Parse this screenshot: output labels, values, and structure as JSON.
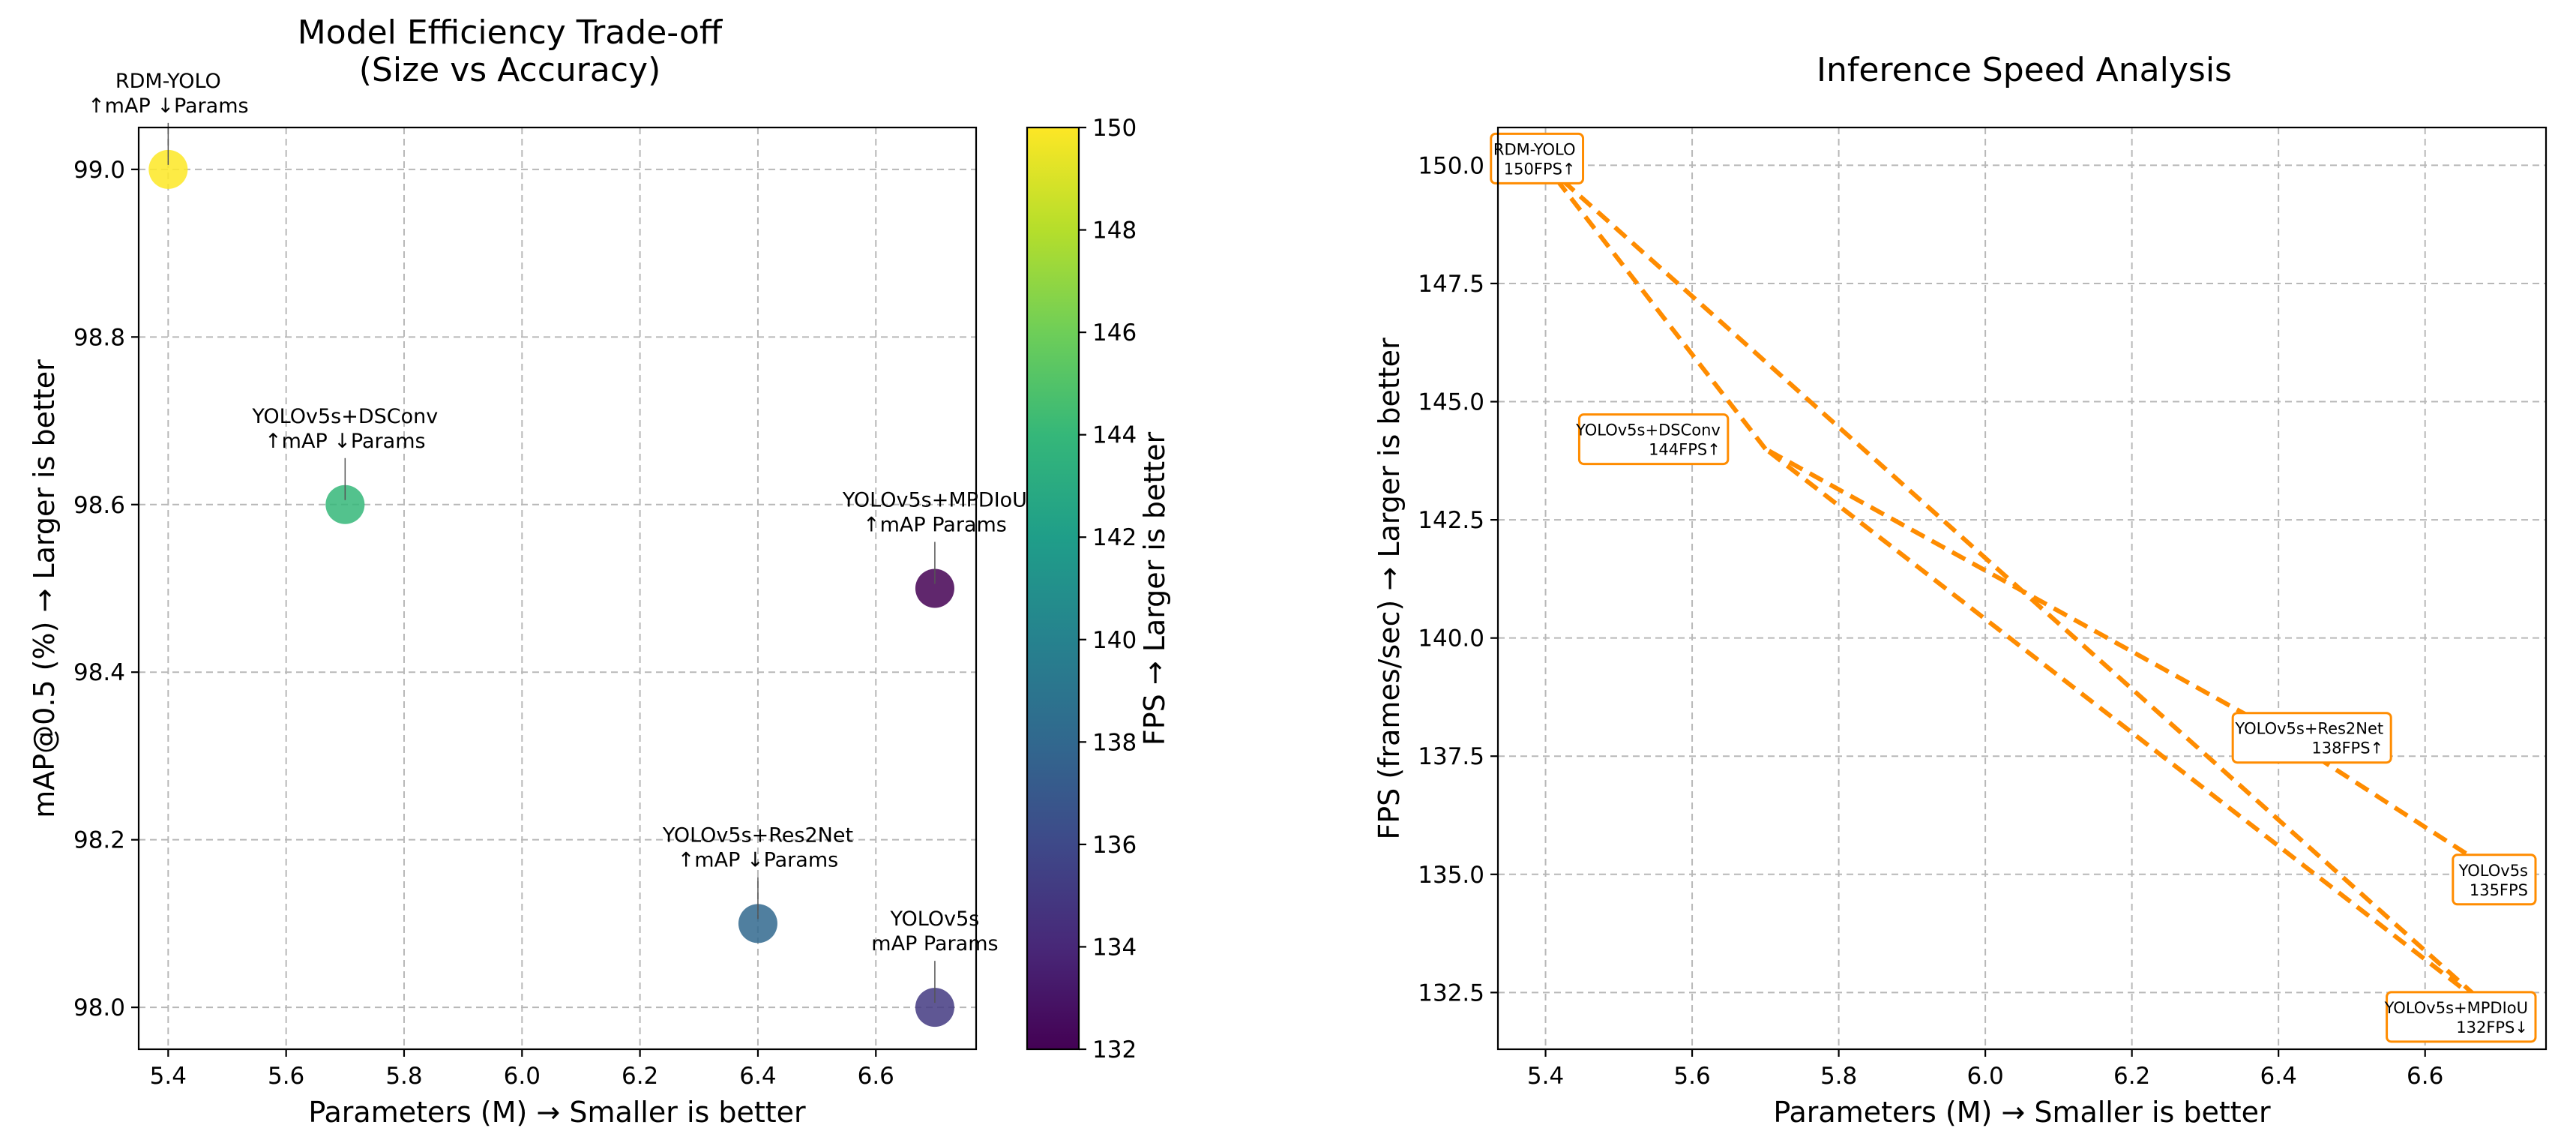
{
  "colors": {
    "line": "#ff8c00",
    "box_border": "#ff8c00",
    "grid": "#b8b8b8",
    "viridis": [
      "#440154",
      "#482878",
      "#3e4989",
      "#31688e",
      "#26828e",
      "#1f9e89",
      "#35b779",
      "#6ece58",
      "#b5de2b",
      "#fde725"
    ]
  },
  "chart_data": [
    {
      "type": "scatter",
      "title": [
        "Model Efficiency Trade-off",
        "(Size vs Accuracy)"
      ],
      "xlabel": "Parameters (M) → Smaller is better",
      "ylabel": "mAP@0.5 (%) → Larger is better",
      "xlim": [
        5.35,
        6.77
      ],
      "ylim": [
        97.95,
        99.05
      ],
      "xticks": [
        "5.4",
        "5.6",
        "5.8",
        "6.0",
        "6.2",
        "6.4",
        "6.6"
      ],
      "xtick_values": [
        5.4,
        5.6,
        5.8,
        6.0,
        6.2,
        6.4,
        6.6
      ],
      "yticks": [
        "98.0",
        "98.2",
        "98.4",
        "98.6",
        "98.8",
        "99.0"
      ],
      "ytick_values": [
        98.0,
        98.2,
        98.4,
        98.6,
        98.8,
        99.0
      ],
      "grid": true,
      "color_by": "fps",
      "colorbar": {
        "label": "FPS → Larger is better",
        "range": [
          132,
          150
        ],
        "ticks": [
          "132",
          "134",
          "136",
          "138",
          "140",
          "142",
          "144",
          "146",
          "148",
          "150"
        ],
        "tick_values": [
          132,
          134,
          136,
          138,
          140,
          142,
          144,
          146,
          148,
          150
        ]
      },
      "points": [
        {
          "x": 5.4,
          "y": 99.0,
          "fps": 150,
          "annotation": [
            "RDM-YOLO",
            "↑mAP ↓Params"
          ]
        },
        {
          "x": 5.7,
          "y": 98.6,
          "fps": 144,
          "annotation": [
            "YOLOv5s+DSConv",
            "↑mAP ↓Params"
          ]
        },
        {
          "x": 6.7,
          "y": 98.5,
          "fps": 132,
          "annotation": [
            "YOLOv5s+MPDIoU",
            "↑mAP Params"
          ]
        },
        {
          "x": 6.4,
          "y": 98.1,
          "fps": 138,
          "annotation": [
            "YOLOv5s+Res2Net",
            "↑mAP ↓Params"
          ]
        },
        {
          "x": 6.7,
          "y": 98.0,
          "fps": 135,
          "annotation": [
            "YOLOv5s",
            "mAP Params"
          ]
        }
      ]
    },
    {
      "type": "line",
      "title": "Inference Speed Analysis",
      "xlabel": "Parameters (M) → Smaller is better",
      "ylabel": "FPS (frames/sec) → Larger is better",
      "xlim": [
        5.335,
        6.765
      ],
      "ylim": [
        131.3,
        150.8
      ],
      "xticks": [
        "5.4",
        "5.6",
        "5.8",
        "6.0",
        "6.2",
        "6.4",
        "6.6"
      ],
      "xtick_values": [
        5.4,
        5.6,
        5.8,
        6.0,
        6.2,
        6.4,
        6.6
      ],
      "yticks": [
        "132.5",
        "135.0",
        "137.5",
        "140.0",
        "142.5",
        "145.0",
        "147.5",
        "150.0"
      ],
      "ytick_values": [
        132.5,
        135.0,
        137.5,
        140.0,
        142.5,
        145.0,
        147.5,
        150.0
      ],
      "grid": true,
      "line_style": "dashed",
      "points_in_order": [
        {
          "x": 5.4,
          "y": 150,
          "label": [
            "RDM-YOLO",
            "150FPS↑"
          ]
        },
        {
          "x": 6.7,
          "y": 132,
          "label": [
            "YOLOv5s+MPDIoU",
            "132FPS↓"
          ]
        },
        {
          "x": 5.7,
          "y": 144,
          "label": [
            "YOLOv5s+DSConv",
            "144FPS↑"
          ]
        },
        {
          "x": 6.4,
          "y": 138,
          "label": [
            "YOLOv5s+Res2Net",
            "138FPS↑"
          ]
        },
        {
          "x": 6.7,
          "y": 135,
          "label": [
            "YOLOv5s",
            "135FPS"
          ]
        }
      ],
      "extra_segments": [
        [
          2,
          0
        ]
      ]
    }
  ]
}
